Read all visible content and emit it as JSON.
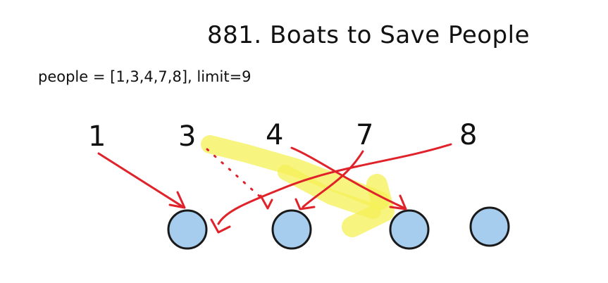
{
  "title": "881. Boats to Save People",
  "input_line": "people = [1,3,4,7,8],  limit=9",
  "people": [
    "1",
    "3",
    "4",
    "7",
    "8"
  ],
  "boats_count": 4,
  "colors": {
    "boat_fill": "#a7cdee",
    "arrow": "#e0222a",
    "highlight": "#f5f056",
    "text": "#111111"
  }
}
